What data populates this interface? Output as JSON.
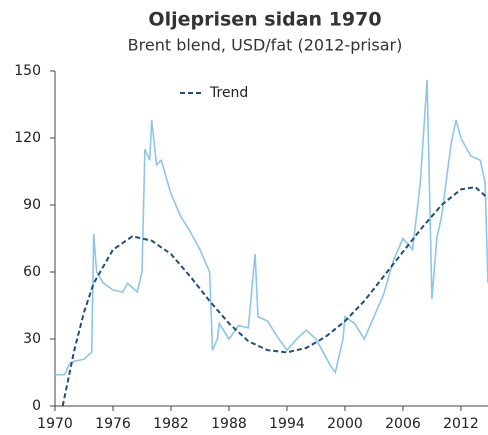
{
  "chart_data": {
    "type": "line",
    "title": "Oljeprisen sidan 1970",
    "subtitle": "Brent blend, USD/fat (2012-prisar)",
    "xlim": [
      1970,
      2014.8
    ],
    "xticks": [
      1970,
      1976,
      1982,
      1988,
      1994,
      2000,
      2006,
      2012
    ],
    "ylim": [
      0,
      150
    ],
    "yticks": [
      0,
      30,
      60,
      90,
      120,
      150
    ],
    "grid": false,
    "series": [
      {
        "color": "#8ec6e8",
        "dashed": false,
        "x": [
          1970,
          1971,
          1971.5,
          1972,
          1973,
          1973.8,
          1974,
          1974.3,
          1975,
          1976,
          1977,
          1977.5,
          1978,
          1978.5,
          1979,
          1979.3,
          1979.8,
          1980,
          1980.5,
          1981,
          1982,
          1983,
          1984,
          1985,
          1986,
          1986.3,
          1986.8,
          1987,
          1988,
          1989,
          1990,
          1990.7,
          1991,
          1992,
          1993,
          1994,
          1995,
          1996,
          1997,
          1998.5,
          1999,
          1999.8,
          2000,
          2001,
          2002,
          2003,
          2004,
          2005,
          2006,
          2007,
          2007.8,
          2008.5,
          2009,
          2009.5,
          2010,
          2011,
          2011.5,
          2012,
          2013,
          2014,
          2014.5,
          2014.8
        ],
        "values": [
          14,
          14,
          19,
          20,
          21,
          24,
          77,
          60,
          55,
          52,
          51,
          55,
          53,
          51,
          60,
          115,
          110,
          128,
          108,
          110,
          95,
          85,
          78,
          70,
          60,
          25,
          30,
          37,
          30,
          36,
          35,
          68,
          40,
          38,
          31,
          25,
          30,
          34,
          30,
          18,
          15,
          30,
          40,
          37,
          30,
          40,
          50,
          65,
          75,
          70,
          100,
          146,
          48,
          75,
          85,
          118,
          128,
          120,
          112,
          110,
          100,
          55
        ]
      },
      {
        "name": "Trend",
        "color": "#1f4e79",
        "dashed": true,
        "x": [
          1970.8,
          1972,
          1973,
          1974,
          1976,
          1978,
          1980,
          1982,
          1984,
          1986,
          1988,
          1990,
          1992,
          1994,
          1996,
          1998,
          2000,
          2002,
          2004,
          2006,
          2008,
          2010,
          2012,
          2013.5,
          2014.8
        ],
        "values": [
          0,
          25,
          42,
          55,
          70,
          76,
          74,
          68,
          58,
          47,
          37,
          29,
          25,
          24,
          26,
          31,
          38,
          47,
          58,
          69,
          80,
          90,
          97,
          98,
          93
        ]
      }
    ]
  }
}
